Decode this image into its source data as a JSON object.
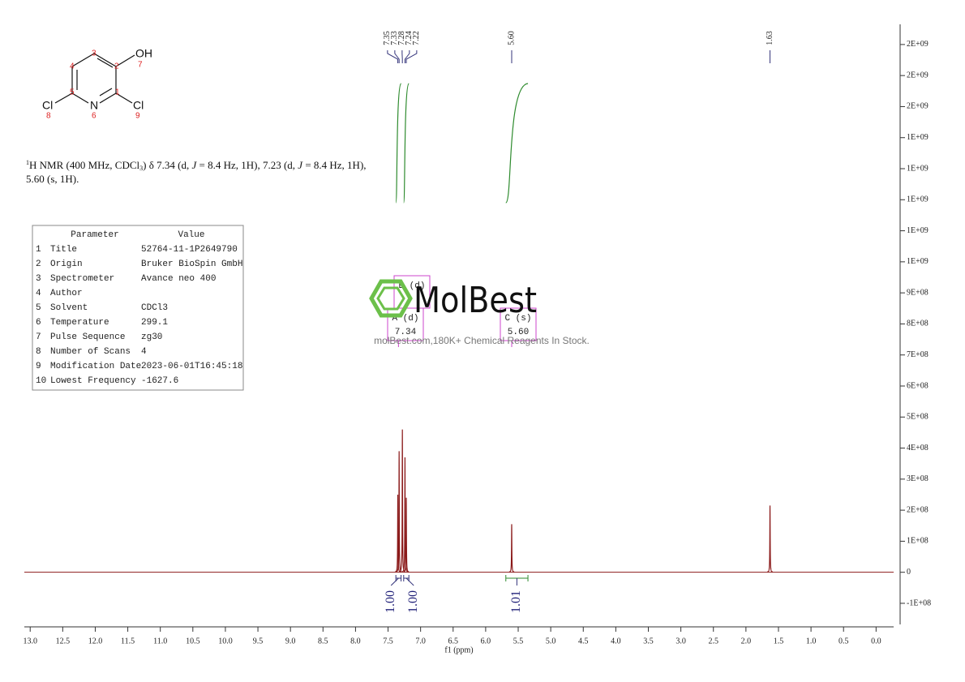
{
  "chart_data": {
    "type": "nmr",
    "x_label": "f1 (ppm)",
    "xlim": [
      13.09,
      -0.27
    ],
    "xticks": [
      {
        "value": 13,
        "label": "13.0"
      },
      12.5,
      {
        "value": 12,
        "label": "12.0"
      },
      11.5,
      {
        "value": 11,
        "label": "11.0"
      },
      10.5,
      {
        "value": 10,
        "label": "10.0"
      },
      9.5,
      {
        "value": 9,
        "label": "9.0"
      },
      8.5,
      {
        "value": 8,
        "label": "8.0"
      },
      7.5,
      {
        "value": 7,
        "label": "7.0"
      },
      6.5,
      {
        "value": 6,
        "label": "6.0"
      },
      5.5,
      {
        "value": 5,
        "label": "5.0"
      },
      4.5,
      {
        "value": 4,
        "label": "4.0"
      },
      3.5,
      {
        "value": 3,
        "label": "3.0"
      },
      2.5,
      {
        "value": 2,
        "label": "2.0"
      },
      1.5,
      {
        "value": 1,
        "label": "1.0"
      },
      0.5,
      {
        "value": 0,
        "label": "0.0"
      }
    ],
    "ylim": [
      -168000000,
      1765000000
    ],
    "yticks": [
      {
        "value": -100000000,
        "label": "-1E+08"
      },
      0,
      {
        "value": 100000000,
        "label": "1E+08"
      },
      {
        "value": 200000000,
        "label": "2E+08"
      },
      {
        "value": 300000000,
        "label": "3E+08"
      },
      {
        "value": 400000000,
        "label": "4E+08"
      },
      {
        "value": 500000000,
        "label": "5E+08"
      },
      {
        "value": 600000000,
        "label": "6E+08"
      },
      {
        "value": 700000000,
        "label": "7E+08"
      },
      {
        "value": 800000000,
        "label": "8E+08"
      },
      {
        "value": 900000000,
        "label": "9E+08"
      },
      {
        "value": 1000000000,
        "label": "1E+09"
      },
      {
        "value": 1100000000,
        "label": "1E+09"
      },
      {
        "value": 1200000000,
        "label": "1E+09"
      },
      {
        "value": 1300000000,
        "label": "1E+09"
      },
      {
        "value": 1400000000,
        "label": "1E+09"
      },
      {
        "value": 1500000000,
        "label": "2E+09"
      },
      {
        "value": 1600000000,
        "label": "2E+09"
      },
      {
        "value": 1700000000,
        "label": "2E+09"
      }
    ],
    "color": "#8b1a1a",
    "peaks": {
      "x": [
        7.35,
        7.33,
        7.28,
        7.24,
        7.22,
        5.6,
        1.63
      ],
      "values": [
        250000000,
        390000000,
        460000000,
        370000000,
        240000000,
        155000000,
        215000000
      ]
    },
    "peak_labels": [
      7.35,
      7.33,
      7.28,
      7.24,
      7.22,
      {
        "value": 5.6,
        "label": "5.60"
      },
      1.63
    ],
    "integrals": [
      {
        "from": 7.38,
        "to": 7.3,
        "value": 1,
        "label": "1.00"
      },
      {
        "from": 7.26,
        "to": 7.18,
        "value": 1,
        "label": "1.00"
      },
      {
        "from": 5.69,
        "to": 5.35,
        "value": 1.01,
        "label": "1.01"
      }
    ],
    "multiplets": [
      {
        "name": "A (d)",
        "shift": 7.34
      },
      {
        "name": "B (d)"
      },
      {
        "name": "C (s)",
        "shift": {
          "value": 5.6,
          "label": "5.60"
        }
      }
    ]
  },
  "structure": {
    "atoms": [
      "OH",
      "Cl",
      "N",
      "Cl"
    ],
    "numbers": [
      "1",
      "2",
      "3",
      "4",
      "5",
      "6",
      "7",
      "8",
      "9"
    ]
  },
  "description": {
    "line1": [
      "1",
      "H NMR (400 MHz, CDCl",
      "3",
      ") δ 7.34 (d, ",
      "J",
      " = 8.4 Hz, 1H), 7.23 (d, ",
      "J",
      " = 8.4 Hz, 1H),"
    ],
    "line2": "5.60 (s, 1H)."
  },
  "table": {
    "header": [
      "Parameter",
      "Value"
    ],
    "rows": [
      [
        "1",
        "Title",
        "52764-11-1P2649790"
      ],
      [
        "2",
        "Origin",
        "Bruker BioSpin GmbH"
      ],
      [
        "3",
        "Spectrometer",
        "Avance neo 400"
      ],
      [
        "4",
        "Author"
      ],
      [
        "5",
        "Solvent",
        "CDCl3"
      ],
      [
        "6",
        "Temperature",
        "299.1"
      ],
      [
        "7",
        "Pulse Sequence",
        "zg30"
      ],
      [
        "8",
        "Number of Scans",
        "4"
      ],
      [
        "9",
        "Modification Date",
        "2023-06-01T16:45:18"
      ],
      [
        "10",
        "Lowest Frequency",
        "-1627.6"
      ]
    ]
  },
  "watermark": {
    "brand": "MolBest",
    "caption": "molBest.com,180K+ Chemical Reagents In Stock."
  }
}
